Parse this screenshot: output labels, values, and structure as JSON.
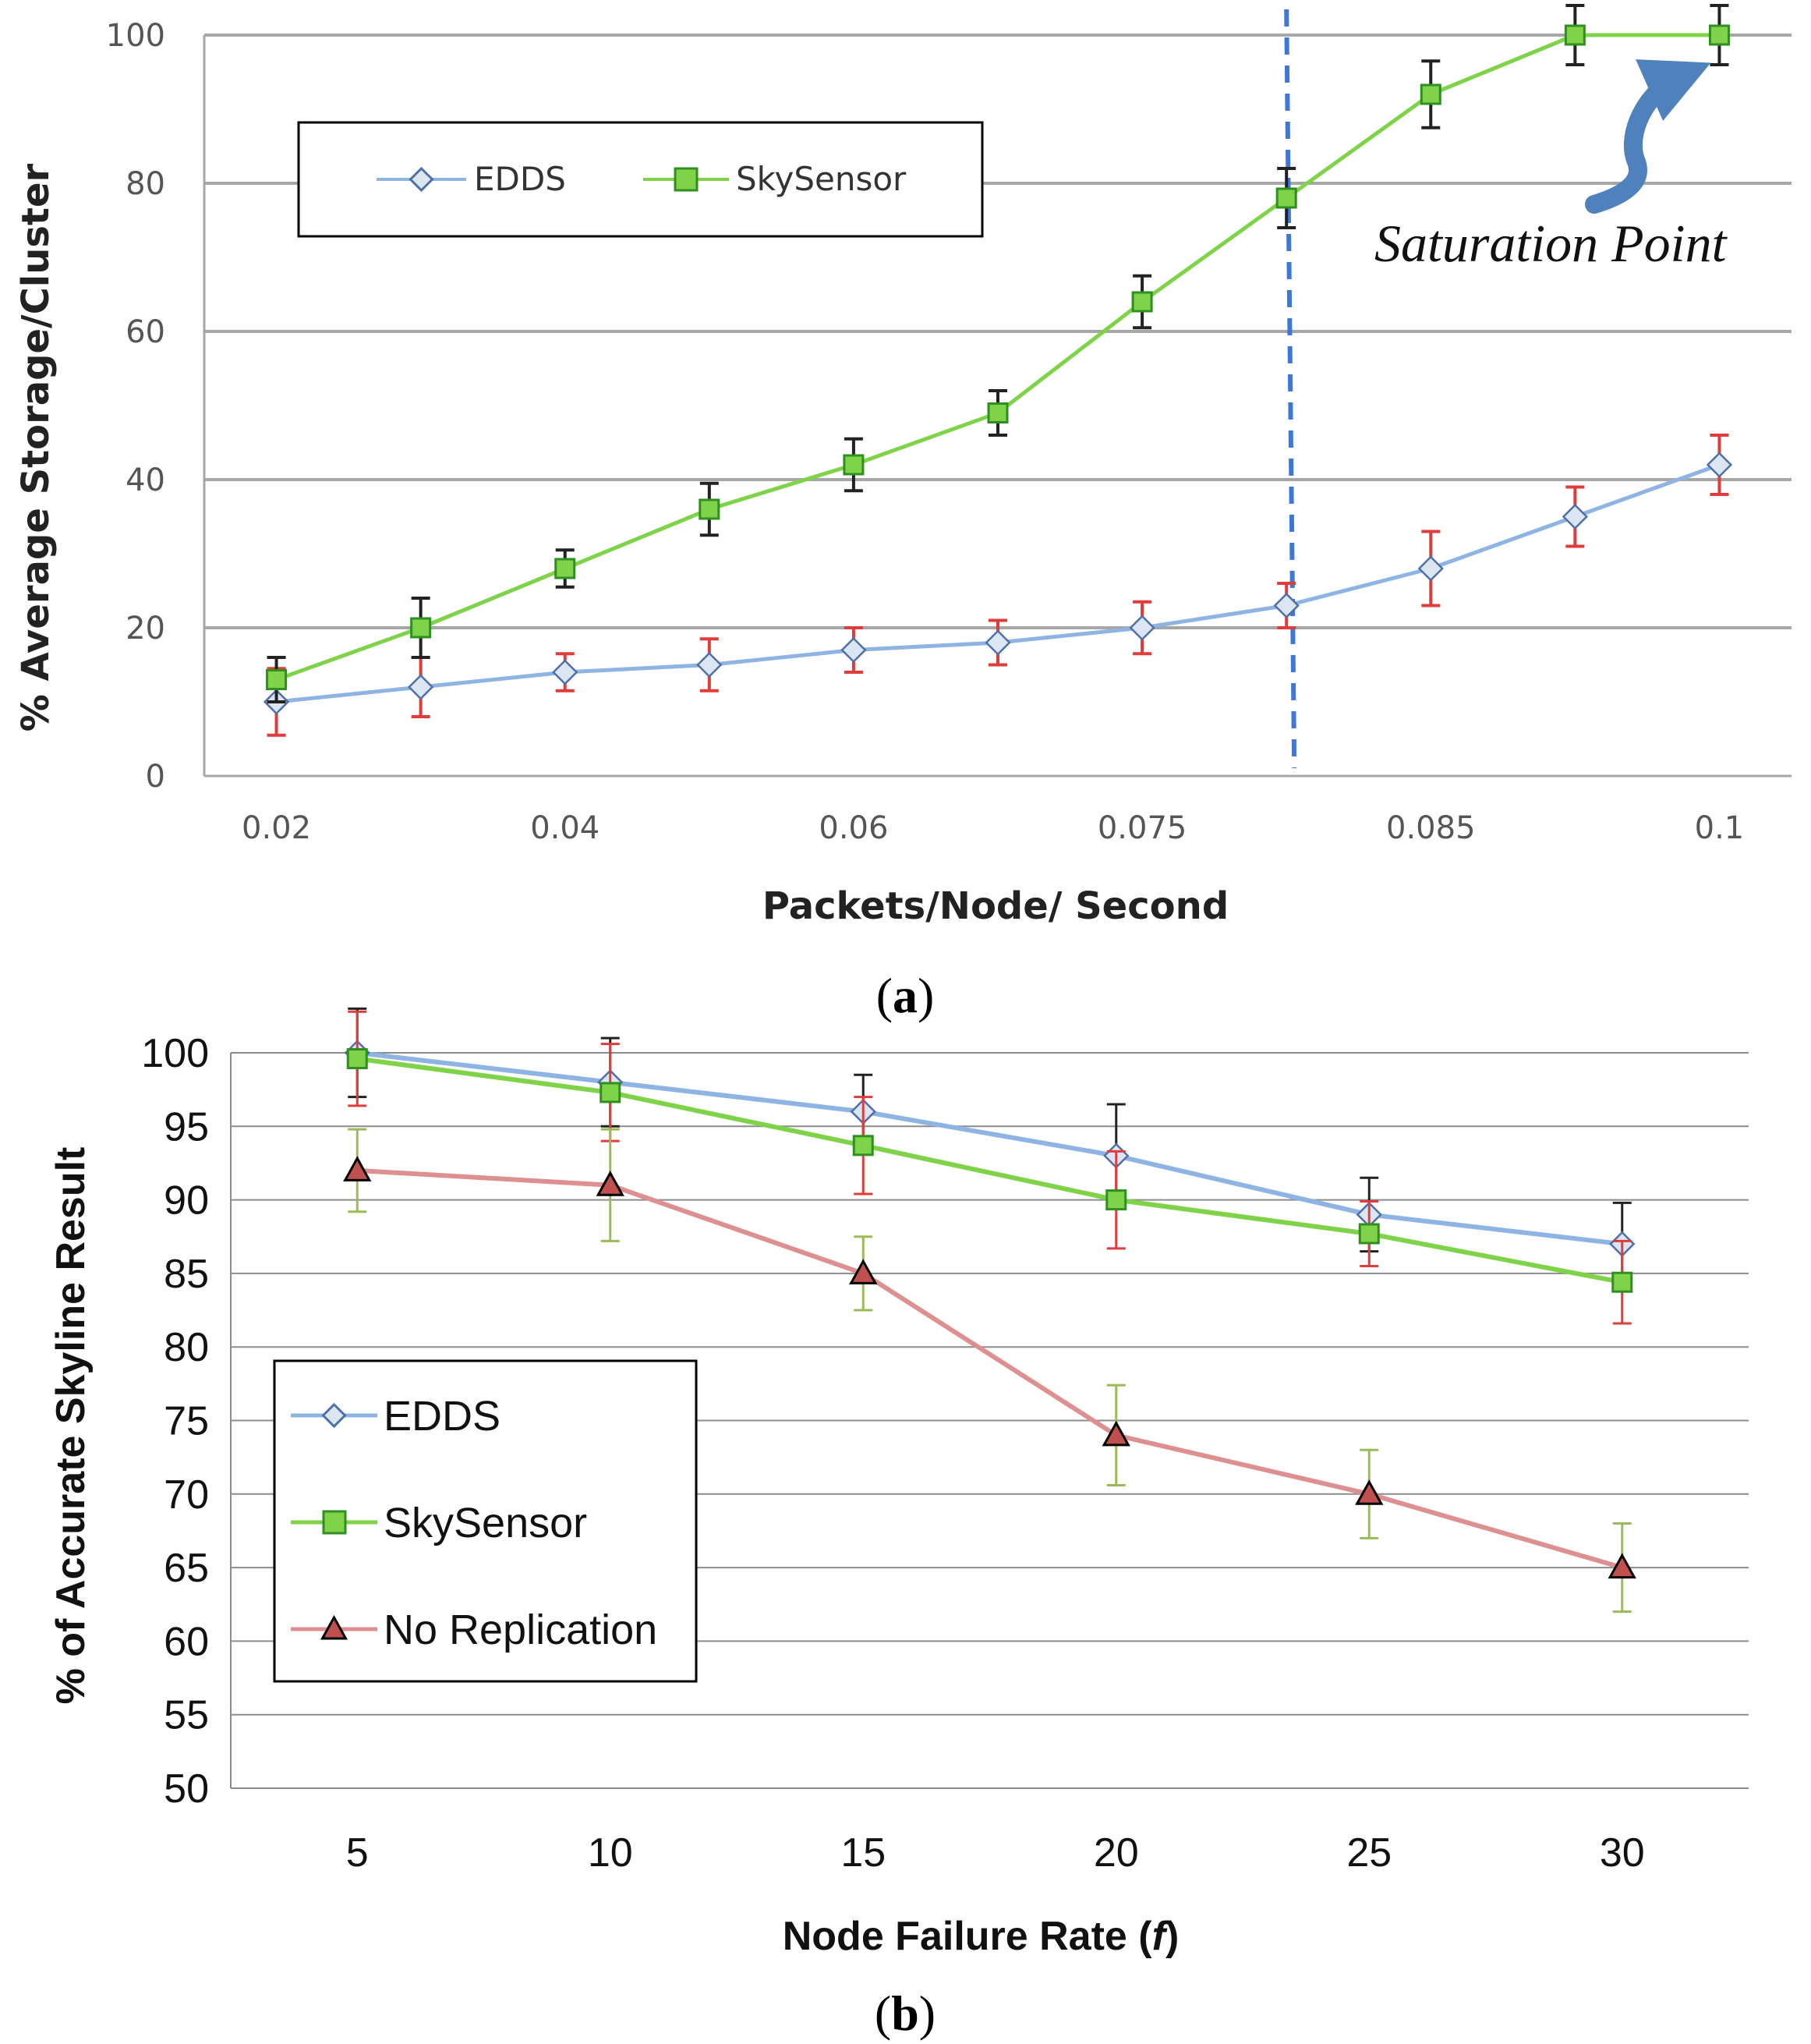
{
  "chart_data": [
    {
      "type": "line",
      "caption_letter": "a",
      "title": "",
      "xlabel": "Packets/Node/ Second",
      "ylabel": "% Average Storage/Cluster",
      "categories": [
        "0.02",
        "",
        "0.04",
        "",
        "0.06",
        "",
        "0.075",
        "",
        "0.085",
        "",
        "0.1"
      ],
      "ylim": [
        0,
        100
      ],
      "yticks": [
        0,
        20,
        40,
        60,
        80,
        100
      ],
      "grid": true,
      "legend_position": "top-left",
      "series": [
        {
          "name": "EDDS",
          "color": "#8eb4e3",
          "marker": "diamond",
          "error_color": "#e03c3c",
          "values": [
            10,
            12,
            14,
            15,
            17,
            18,
            20,
            23,
            28,
            35,
            42
          ],
          "errors": [
            4.5,
            4,
            2.5,
            3.5,
            3,
            3,
            3.5,
            3,
            5,
            4,
            4
          ]
        },
        {
          "name": "SkySensor",
          "color": "#7ed348",
          "marker": "square",
          "error_color": "#222222",
          "values": [
            13,
            20,
            28,
            36,
            42,
            49,
            64,
            78,
            92,
            100,
            100
          ],
          "errors": [
            3,
            4,
            2.5,
            3.5,
            3.5,
            3,
            3.5,
            4,
            4.5,
            4,
            4
          ]
        }
      ],
      "vertical_marker_category_index": 7,
      "vertical_marker_color": "#3d78d8",
      "annotation": {
        "text": "Saturation Point",
        "arrow_color": "#4f81bd"
      }
    },
    {
      "type": "line",
      "caption_letter": "b",
      "title": "",
      "xlabel": "Node Failure Rate (",
      "xlabel_symbol": "f",
      "xlabel_end": ")",
      "ylabel": "% of Accurate Skyline Result",
      "categories": [
        "5",
        "10",
        "15",
        "20",
        "25",
        "30"
      ],
      "ylim": [
        50,
        100
      ],
      "yticks": [
        50,
        55,
        60,
        65,
        70,
        75,
        80,
        85,
        90,
        95,
        100
      ],
      "grid": true,
      "legend_position": "left",
      "series": [
        {
          "name": "EDDS",
          "color": "#8eb4e3",
          "marker": "diamond",
          "error_color": "#222222",
          "values": [
            100,
            98,
            96,
            93,
            89,
            87
          ],
          "errors": [
            3,
            3,
            2.5,
            3.5,
            2.5,
            2.8
          ]
        },
        {
          "name": "SkySensor",
          "color": "#7ed348",
          "marker": "square",
          "error_color": "#e03c3c",
          "values": [
            99.6,
            97.3,
            93.7,
            90,
            87.7,
            84.4
          ],
          "errors": [
            3.2,
            3.3,
            3.3,
            3.3,
            2.2,
            2.8
          ]
        },
        {
          "name": "No Replication",
          "color": "#de8f8f",
          "marker": "triangle",
          "marker_fill": "#c0504d",
          "error_color": "#9bbb59",
          "values": [
            92,
            91,
            85,
            74,
            70,
            65
          ],
          "errors": [
            2.8,
            3.8,
            2.5,
            3.4,
            3,
            3
          ]
        }
      ]
    }
  ]
}
